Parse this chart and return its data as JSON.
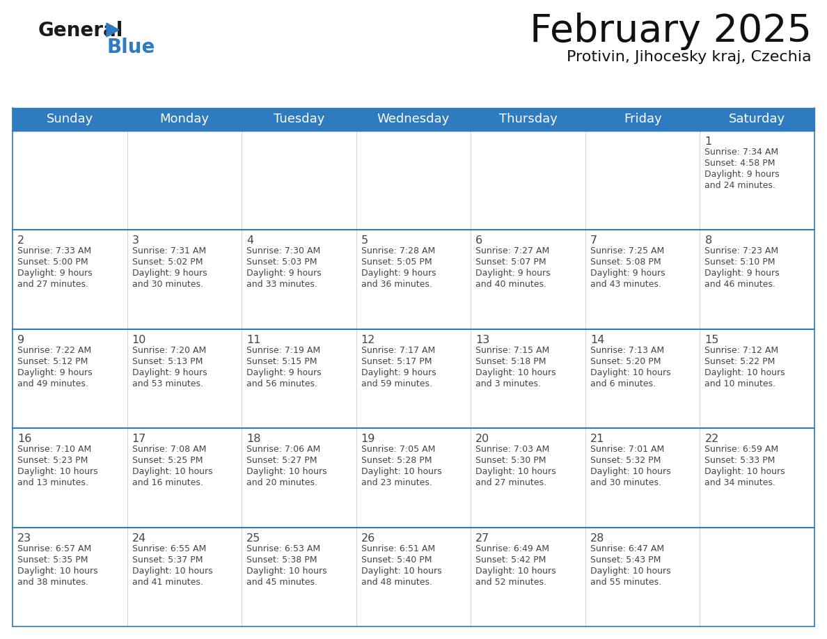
{
  "title": "February 2025",
  "subtitle": "Protivin, Jihocesky kraj, Czechia",
  "days_of_week": [
    "Sunday",
    "Monday",
    "Tuesday",
    "Wednesday",
    "Thursday",
    "Friday",
    "Saturday"
  ],
  "header_bg": "#2E7BBF",
  "header_text": "#FFFFFF",
  "separator_color": "#2E7BBF",
  "text_color": "#444444",
  "cell_line_color": "#aaaaaa",
  "calendar": [
    [
      null,
      null,
      null,
      null,
      null,
      null,
      {
        "day": "1",
        "sunrise": "7:34 AM",
        "sunset": "4:58 PM",
        "daylight1": "9 hours",
        "daylight2": "and 24 minutes."
      }
    ],
    [
      {
        "day": "2",
        "sunrise": "7:33 AM",
        "sunset": "5:00 PM",
        "daylight1": "9 hours",
        "daylight2": "and 27 minutes."
      },
      {
        "day": "3",
        "sunrise": "7:31 AM",
        "sunset": "5:02 PM",
        "daylight1": "9 hours",
        "daylight2": "and 30 minutes."
      },
      {
        "day": "4",
        "sunrise": "7:30 AM",
        "sunset": "5:03 PM",
        "daylight1": "9 hours",
        "daylight2": "and 33 minutes."
      },
      {
        "day": "5",
        "sunrise": "7:28 AM",
        "sunset": "5:05 PM",
        "daylight1": "9 hours",
        "daylight2": "and 36 minutes."
      },
      {
        "day": "6",
        "sunrise": "7:27 AM",
        "sunset": "5:07 PM",
        "daylight1": "9 hours",
        "daylight2": "and 40 minutes."
      },
      {
        "day": "7",
        "sunrise": "7:25 AM",
        "sunset": "5:08 PM",
        "daylight1": "9 hours",
        "daylight2": "and 43 minutes."
      },
      {
        "day": "8",
        "sunrise": "7:23 AM",
        "sunset": "5:10 PM",
        "daylight1": "9 hours",
        "daylight2": "and 46 minutes."
      }
    ],
    [
      {
        "day": "9",
        "sunrise": "7:22 AM",
        "sunset": "5:12 PM",
        "daylight1": "9 hours",
        "daylight2": "and 49 minutes."
      },
      {
        "day": "10",
        "sunrise": "7:20 AM",
        "sunset": "5:13 PM",
        "daylight1": "9 hours",
        "daylight2": "and 53 minutes."
      },
      {
        "day": "11",
        "sunrise": "7:19 AM",
        "sunset": "5:15 PM",
        "daylight1": "9 hours",
        "daylight2": "and 56 minutes."
      },
      {
        "day": "12",
        "sunrise": "7:17 AM",
        "sunset": "5:17 PM",
        "daylight1": "9 hours",
        "daylight2": "and 59 minutes."
      },
      {
        "day": "13",
        "sunrise": "7:15 AM",
        "sunset": "5:18 PM",
        "daylight1": "10 hours",
        "daylight2": "and 3 minutes."
      },
      {
        "day": "14",
        "sunrise": "7:13 AM",
        "sunset": "5:20 PM",
        "daylight1": "10 hours",
        "daylight2": "and 6 minutes."
      },
      {
        "day": "15",
        "sunrise": "7:12 AM",
        "sunset": "5:22 PM",
        "daylight1": "10 hours",
        "daylight2": "and 10 minutes."
      }
    ],
    [
      {
        "day": "16",
        "sunrise": "7:10 AM",
        "sunset": "5:23 PM",
        "daylight1": "10 hours",
        "daylight2": "and 13 minutes."
      },
      {
        "day": "17",
        "sunrise": "7:08 AM",
        "sunset": "5:25 PM",
        "daylight1": "10 hours",
        "daylight2": "and 16 minutes."
      },
      {
        "day": "18",
        "sunrise": "7:06 AM",
        "sunset": "5:27 PM",
        "daylight1": "10 hours",
        "daylight2": "and 20 minutes."
      },
      {
        "day": "19",
        "sunrise": "7:05 AM",
        "sunset": "5:28 PM",
        "daylight1": "10 hours",
        "daylight2": "and 23 minutes."
      },
      {
        "day": "20",
        "sunrise": "7:03 AM",
        "sunset": "5:30 PM",
        "daylight1": "10 hours",
        "daylight2": "and 27 minutes."
      },
      {
        "day": "21",
        "sunrise": "7:01 AM",
        "sunset": "5:32 PM",
        "daylight1": "10 hours",
        "daylight2": "and 30 minutes."
      },
      {
        "day": "22",
        "sunrise": "6:59 AM",
        "sunset": "5:33 PM",
        "daylight1": "10 hours",
        "daylight2": "and 34 minutes."
      }
    ],
    [
      {
        "day": "23",
        "sunrise": "6:57 AM",
        "sunset": "5:35 PM",
        "daylight1": "10 hours",
        "daylight2": "and 38 minutes."
      },
      {
        "day": "24",
        "sunrise": "6:55 AM",
        "sunset": "5:37 PM",
        "daylight1": "10 hours",
        "daylight2": "and 41 minutes."
      },
      {
        "day": "25",
        "sunrise": "6:53 AM",
        "sunset": "5:38 PM",
        "daylight1": "10 hours",
        "daylight2": "and 45 minutes."
      },
      {
        "day": "26",
        "sunrise": "6:51 AM",
        "sunset": "5:40 PM",
        "daylight1": "10 hours",
        "daylight2": "and 48 minutes."
      },
      {
        "day": "27",
        "sunrise": "6:49 AM",
        "sunset": "5:42 PM",
        "daylight1": "10 hours",
        "daylight2": "and 52 minutes."
      },
      {
        "day": "28",
        "sunrise": "6:47 AM",
        "sunset": "5:43 PM",
        "daylight1": "10 hours",
        "daylight2": "and 55 minutes."
      },
      null
    ]
  ]
}
